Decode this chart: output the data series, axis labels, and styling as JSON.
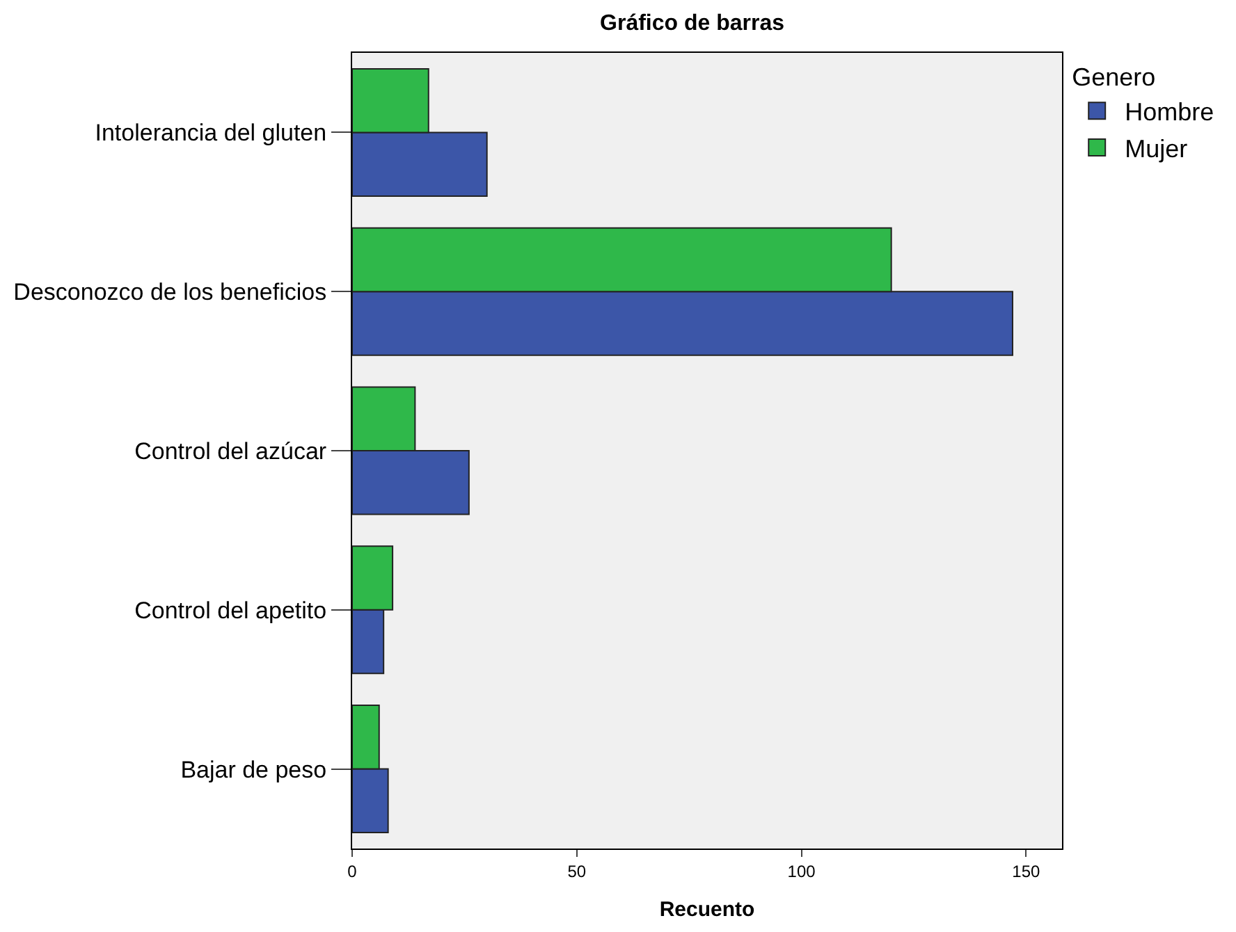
{
  "chart_data": {
    "type": "bar",
    "orientation": "horizontal",
    "title": "Gráfico de barras",
    "xlabel": "Recuento",
    "categories": [
      "Intolerancia del gluten",
      "Desconozco de los beneficios",
      "Control del azúcar",
      "Control del apetito",
      "Bajar de peso"
    ],
    "series": [
      {
        "name": "Hombre",
        "color": "#3c56a8",
        "values": [
          30,
          147,
          26,
          7,
          8
        ]
      },
      {
        "name": "Mujer",
        "color": "#2fb84a",
        "values": [
          17,
          120,
          14,
          9,
          6
        ]
      }
    ],
    "legend_title": "Genero",
    "legend": "top right",
    "grid": false,
    "xlim": [
      0,
      158
    ],
    "xticks": [
      0,
      50,
      100,
      150
    ]
  }
}
